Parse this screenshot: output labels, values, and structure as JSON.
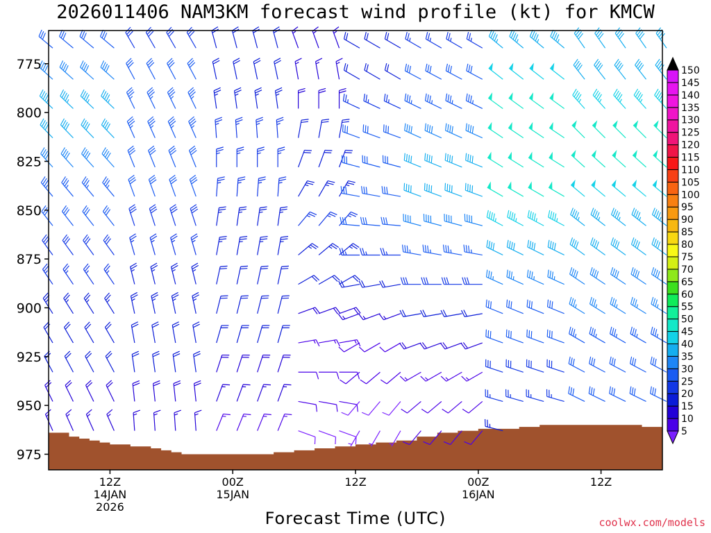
{
  "chart_data": {
    "type": "wind_barb_time_height",
    "title": "2026011406 NAM3KM forecast wind profile (kt) for KMCW",
    "xlabel": "Forecast Time (UTC)",
    "ylabel": "",
    "y_axis": {
      "units": "hPa",
      "range": [
        983,
        758
      ],
      "ticks": [
        775,
        800,
        825,
        850,
        875,
        900,
        925,
        950,
        975
      ]
    },
    "x_axis": {
      "units": "hours from 2026-01-14 06Z",
      "range": [
        0,
        60
      ],
      "ticks": [
        {
          "hour": 6,
          "labels": [
            "12Z",
            "14JAN",
            "2026"
          ]
        },
        {
          "hour": 18,
          "labels": [
            "00Z",
            "15JAN"
          ]
        },
        {
          "hour": 30,
          "labels": [
            "12Z"
          ]
        },
        {
          "hour": 42,
          "labels": [
            "00Z",
            "16JAN"
          ]
        },
        {
          "hour": 54,
          "labels": [
            "12Z"
          ]
        }
      ]
    },
    "colorbar": {
      "units": "kt",
      "levels": [
        5,
        10,
        15,
        20,
        25,
        30,
        35,
        40,
        45,
        50,
        55,
        60,
        65,
        70,
        75,
        80,
        85,
        90,
        95,
        100,
        105,
        110,
        115,
        120,
        125,
        130,
        135,
        140,
        145,
        150
      ],
      "colors": [
        "#7a1fff",
        "#4a00e8",
        "#2200d8",
        "#0a1cd8",
        "#1238e6",
        "#1a5cf2",
        "#1e86f6",
        "#15aef0",
        "#14d2e8",
        "#14e8c8",
        "#12f09a",
        "#10ec5a",
        "#3ce01e",
        "#8ee81a",
        "#d4f014",
        "#f8f816",
        "#f8d812",
        "#f8b810",
        "#f89a10",
        "#f88012",
        "#f86412",
        "#f84014",
        "#f81818",
        "#f01448",
        "#f01478",
        "#f014a0",
        "#f014c8",
        "#f014e0",
        "#e814f0",
        "#d814f8"
      ]
    },
    "terrain": {
      "color": "#a0522d",
      "hours": [
        0,
        2,
        3,
        4,
        5,
        6,
        8,
        10,
        11,
        12,
        13,
        14,
        18,
        22,
        24,
        26,
        28,
        30,
        32,
        34,
        36,
        38,
        40,
        42,
        44,
        46,
        48,
        52,
        58,
        60
      ],
      "pressure": [
        964,
        966,
        967,
        968,
        969,
        970,
        971,
        972,
        973,
        974,
        975,
        975,
        975,
        974,
        973,
        972,
        971,
        970,
        969,
        968,
        966,
        964,
        963,
        962,
        962,
        961,
        960,
        960,
        961,
        961
      ]
    },
    "barb_columns": [
      {
        "hours": [
          0,
          2,
          4,
          6
        ],
        "speed": [
          30,
          38,
          44,
          40,
          38,
          34,
          30,
          28,
          26,
          24,
          22,
          20,
          18,
          16
        ],
        "dir": [
          310,
          312,
          314,
          316,
          318,
          320,
          322,
          324,
          326,
          328,
          330,
          332,
          334,
          336
        ]
      },
      {
        "hours": [
          8,
          10,
          12,
          14
        ],
        "speed": [
          28,
          32,
          34,
          34,
          32,
          30,
          28,
          26,
          24,
          24,
          22,
          20,
          18,
          16
        ],
        "dir": [
          330,
          332,
          334,
          336,
          338,
          340,
          342,
          344,
          346,
          348,
          350,
          352,
          354,
          356
        ]
      },
      {
        "hours": [
          16,
          18,
          20,
          22
        ],
        "speed": [
          20,
          22,
          24,
          26,
          26,
          26,
          24,
          24,
          22,
          20,
          20,
          18,
          16,
          14
        ],
        "dir": [
          345,
          348,
          352,
          356,
          0,
          4,
          8,
          10,
          12,
          14,
          16,
          18,
          20,
          22
        ]
      },
      {
        "hours": [
          24,
          26,
          28
        ],
        "speed": [
          15,
          16,
          18,
          20,
          22,
          24,
          26,
          24,
          22,
          18,
          14,
          12,
          10,
          8
        ],
        "dir": [
          340,
          350,
          0,
          10,
          20,
          30,
          40,
          50,
          60,
          70,
          80,
          90,
          100,
          110
        ]
      },
      {
        "hours": [
          30,
          32,
          34
        ],
        "speed": [
          20,
          22,
          26,
          30,
          32,
          32,
          30,
          26,
          20,
          16,
          12,
          10,
          8,
          6
        ],
        "dir": [
          300,
          300,
          295,
          290,
          285,
          280,
          275,
          270,
          260,
          250,
          240,
          230,
          220,
          210
        ]
      },
      {
        "hours": [
          36,
          38,
          40,
          42
        ],
        "speed": [
          26,
          30,
          34,
          38,
          40,
          40,
          38,
          34,
          28,
          22,
          18,
          14,
          12,
          10
        ],
        "dir": [
          300,
          298,
          296,
          294,
          292,
          290,
          285,
          280,
          270,
          260,
          250,
          240,
          230,
          220
        ]
      },
      {
        "hours": [
          44,
          46,
          48,
          50
        ],
        "speed": [
          44,
          48,
          50,
          52,
          52,
          50,
          46,
          40,
          36,
          32,
          30,
          28,
          26,
          24
        ],
        "dir": [
          310,
          308,
          306,
          304,
          302,
          300,
          298,
          296,
          294,
          292,
          290,
          288,
          286,
          284
        ]
      },
      {
        "hours": [
          52,
          54,
          56,
          58,
          60
        ],
        "speed": [
          40,
          42,
          46,
          50,
          50,
          48,
          44,
          40,
          38,
          36,
          34,
          32,
          30,
          28
        ],
        "dir": [
          325,
          322,
          318,
          315,
          312,
          310,
          308,
          306,
          304,
          302,
          300,
          298,
          296,
          294
        ]
      }
    ],
    "barb_levels": [
      762,
      778,
      793,
      808,
      823,
      838,
      853,
      868,
      883,
      898,
      913,
      928,
      943,
      958
    ]
  },
  "credit": "coolwx.com/models"
}
